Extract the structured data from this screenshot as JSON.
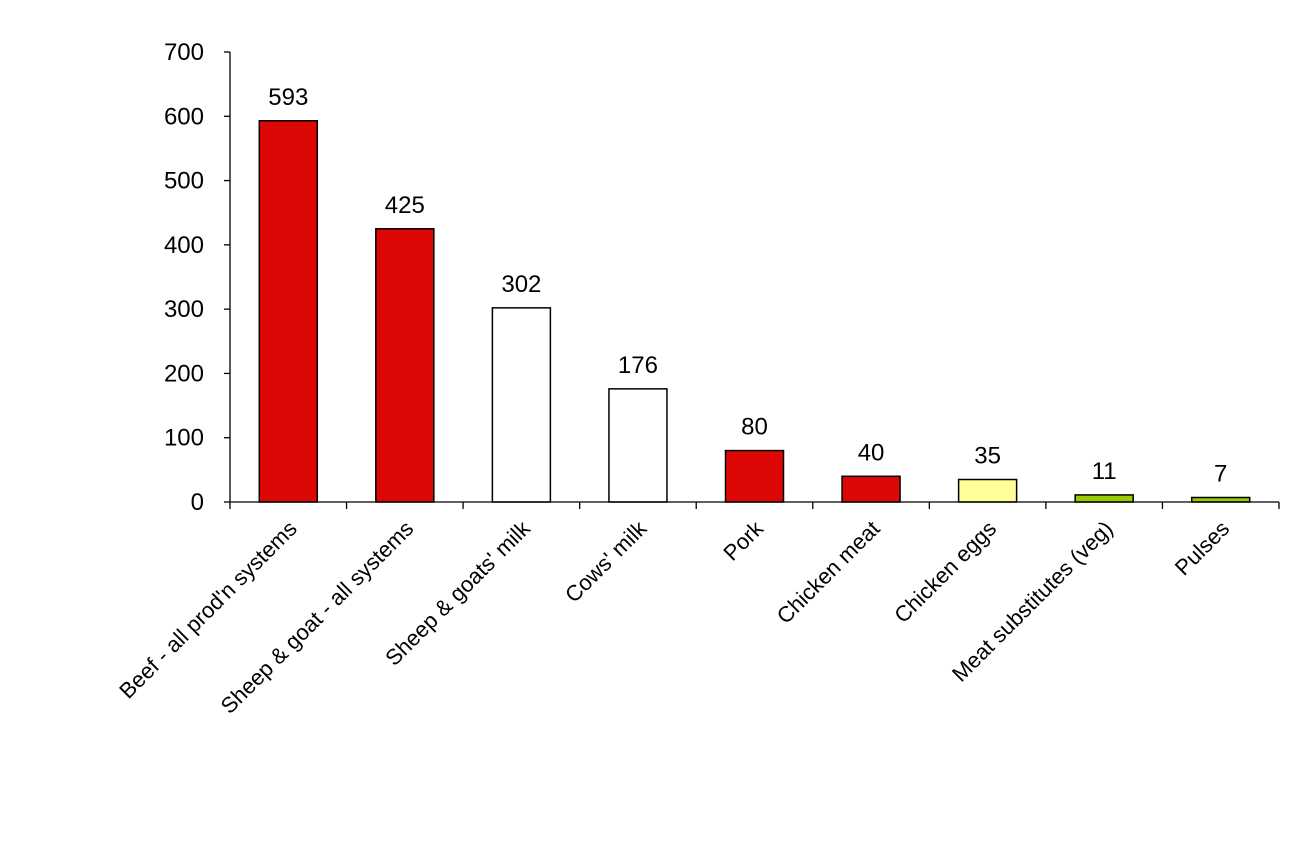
{
  "chart_data": {
    "type": "bar",
    "title": "",
    "xlabel": "",
    "ylabel": "",
    "ylim": [
      0,
      700
    ],
    "yticks": [
      0,
      100,
      200,
      300,
      400,
      500,
      600,
      700
    ],
    "grid": false,
    "legend": "none",
    "categories": [
      "Beef - all prod'n systems",
      "Sheep & goat - all systems",
      "Sheep & goats' milk",
      "Cows' milk",
      "Pork",
      "Chicken meat",
      "Chicken eggs",
      "Meat substitutes (veg)",
      "Pulses"
    ],
    "values": [
      593,
      425,
      302,
      176,
      80,
      40,
      35,
      11,
      7
    ],
    "data_labels": [
      "593",
      "425",
      "302",
      "176",
      "80",
      "40",
      "35",
      "11",
      "7"
    ],
    "bar_colors": [
      "#dd0806",
      "#dd0806",
      "#ffffff",
      "#ffffff",
      "#dd0806",
      "#dd0806",
      "#ffff99",
      "#99cc00",
      "#99cc00"
    ]
  }
}
